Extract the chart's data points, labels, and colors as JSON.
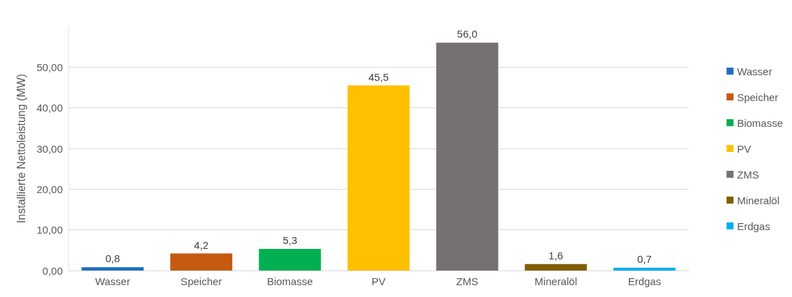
{
  "chart_data": {
    "type": "bar",
    "ylabel": "Installierte Nettoleistung (MW)",
    "categories": [
      "Wasser",
      "Speicher",
      "Biomasse",
      "PV",
      "ZMS",
      "Mineralöl",
      "Erdgas"
    ],
    "series": [
      {
        "name": "Wasser",
        "color": "#1f6fbf",
        "values": [
          0.8,
          null,
          null,
          null,
          null,
          null,
          null
        ],
        "value_labels": [
          "0,8",
          null,
          null,
          null,
          null,
          null,
          null
        ]
      },
      {
        "name": "Speicher",
        "color": "#c55a11",
        "values": [
          null,
          4.2,
          null,
          null,
          null,
          null,
          null
        ],
        "value_labels": [
          null,
          "4,2",
          null,
          null,
          null,
          null,
          null
        ]
      },
      {
        "name": "Biomasse",
        "color": "#00b050",
        "values": [
          null,
          null,
          5.3,
          null,
          null,
          null,
          null
        ],
        "value_labels": [
          null,
          null,
          "5,3",
          null,
          null,
          null,
          null
        ]
      },
      {
        "name": "PV",
        "color": "#ffc000",
        "values": [
          null,
          null,
          null,
          45.5,
          null,
          null,
          null
        ],
        "value_labels": [
          null,
          null,
          null,
          "45,5",
          null,
          null,
          null
        ]
      },
      {
        "name": "ZMS",
        "color": "#767171",
        "values": [
          null,
          null,
          null,
          null,
          56.0,
          null,
          null
        ],
        "value_labels": [
          null,
          null,
          null,
          null,
          "56,0",
          null,
          null
        ]
      },
      {
        "name": "Mineralöl",
        "color": "#7f6000",
        "values": [
          null,
          null,
          null,
          null,
          null,
          1.6,
          null
        ],
        "value_labels": [
          null,
          null,
          null,
          null,
          null,
          "1,6",
          null
        ]
      },
      {
        "name": "Erdgas",
        "color": "#00b0f0",
        "values": [
          null,
          null,
          null,
          null,
          null,
          null,
          0.7
        ],
        "value_labels": [
          null,
          null,
          null,
          null,
          null,
          null,
          "0,7"
        ]
      }
    ],
    "ylim": [
      0,
      60
    ],
    "yticks": [
      {
        "value": 0,
        "label": "0,00"
      },
      {
        "value": 10,
        "label": "10,00"
      },
      {
        "value": 20,
        "label": "20,00"
      },
      {
        "value": 30,
        "label": "30,00"
      },
      {
        "value": 40,
        "label": "40,00"
      },
      {
        "value": 50,
        "label": "50,00"
      }
    ],
    "grid": "y",
    "legend": "right"
  }
}
